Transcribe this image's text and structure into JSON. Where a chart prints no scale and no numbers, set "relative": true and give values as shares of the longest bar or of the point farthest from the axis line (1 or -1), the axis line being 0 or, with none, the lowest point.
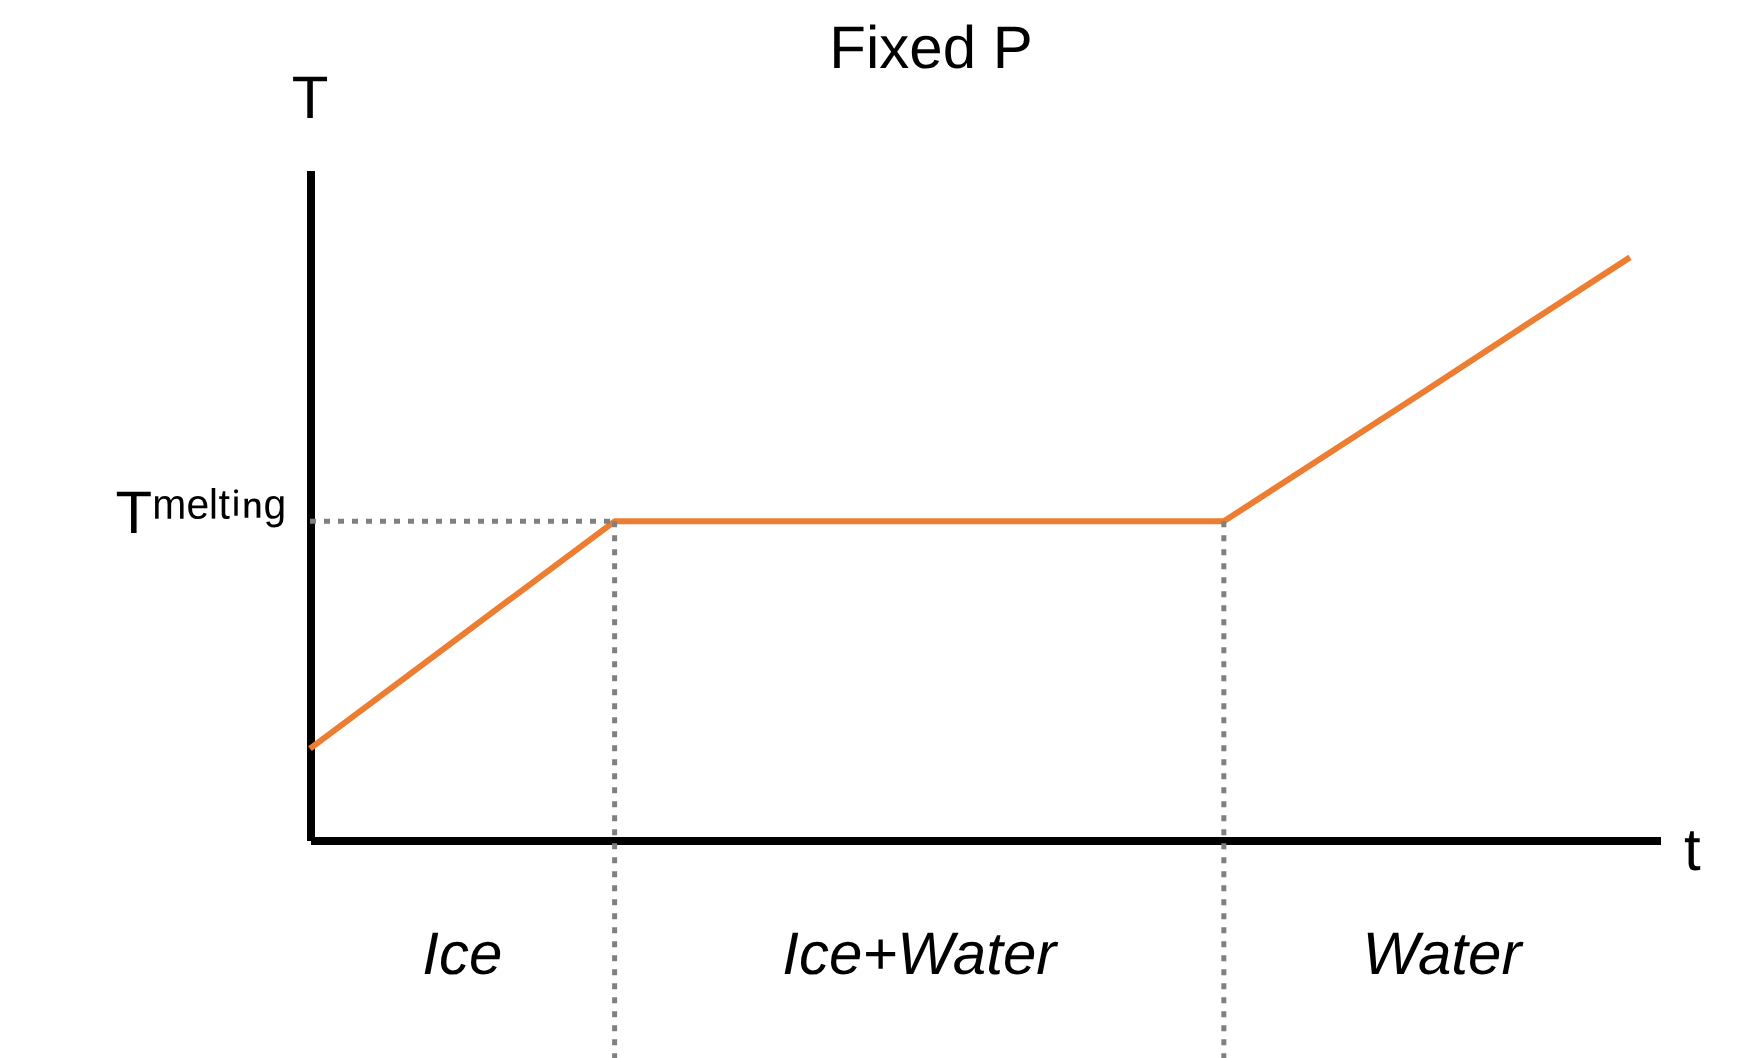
{
  "chart_data": {
    "type": "line",
    "title": "Fixed P",
    "xlabel": "t",
    "ylabel": "T",
    "relative": true,
    "categories": [
      null,
      null,
      null,
      null,
      null,
      null,
      null,
      null,
      null,
      null,
      null,
      null,
      null,
      null
    ],
    "series": [
      {
        "color": "#ed7d31",
        "values": [
          0.157,
          0.287,
          0.417,
          0.547,
          0.547,
          0.547,
          0.547,
          0.547,
          0.547,
          0.547,
          0.66,
          0.773,
          0.887,
          1.0
        ]
      }
    ],
    "ref_lines": [
      {
        "axis": "y",
        "value": 0.547,
        "label": "Tᵐᵉˡᵗⁱⁿᵍ",
        "color": "#808080",
        "line_style": "dotted"
      }
    ],
    "annotations": [
      "Ice",
      "Ice+Water",
      "Water"
    ],
    "tick_labels": false,
    "grid": false,
    "marker": "none",
    "line_style": "solid"
  }
}
